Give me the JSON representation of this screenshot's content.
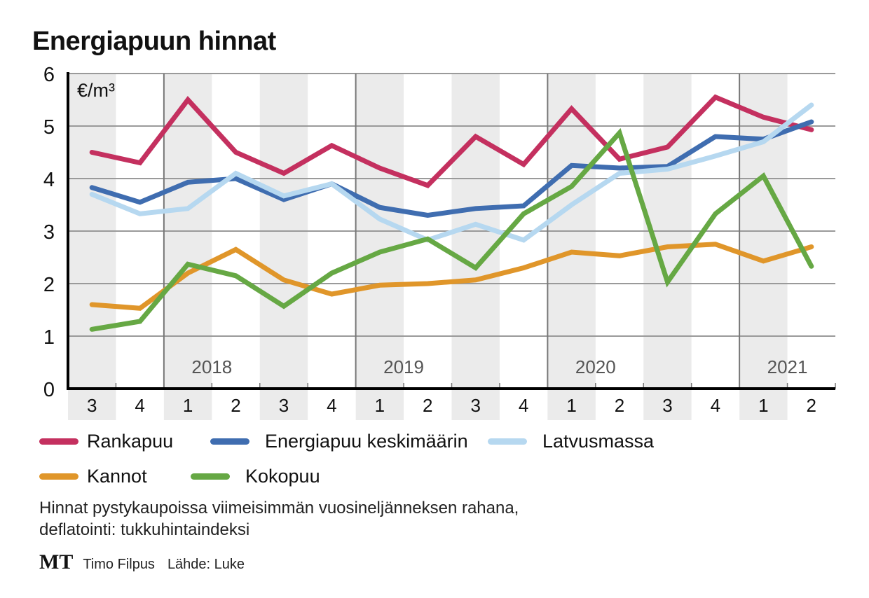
{
  "header": {
    "title": "Energiapuun hinnat"
  },
  "chart_data": {
    "type": "line",
    "title": "Energiapuun hinnat",
    "unit_label": "€/m³",
    "xlabel": "",
    "ylabel": "€/m³",
    "ylim": [
      0,
      6
    ],
    "yticks": [
      "0",
      "1",
      "2",
      "3",
      "4",
      "5",
      "6"
    ],
    "grid": true,
    "x": [
      "3",
      "4",
      "1",
      "2",
      "3",
      "4",
      "1",
      "2",
      "3",
      "4",
      "1",
      "2",
      "3",
      "4",
      "1",
      "2"
    ],
    "year_labels": [
      {
        "label": "2018",
        "start_index": 2
      },
      {
        "label": "2019",
        "start_index": 6
      },
      {
        "label": "2020",
        "start_index": 10
      },
      {
        "label": "2021",
        "start_index": 14
      }
    ],
    "series": [
      {
        "name": "Rankapuu",
        "color": "#c4305f",
        "values": [
          4.5,
          4.3,
          5.5,
          4.5,
          4.1,
          4.63,
          4.2,
          3.87,
          4.8,
          4.27,
          5.33,
          4.37,
          4.6,
          5.55,
          5.17,
          4.93
        ]
      },
      {
        "name": "Energiapuu keskimäärin",
        "color": "#3f6db0",
        "values": [
          3.83,
          3.55,
          3.93,
          4.0,
          3.6,
          3.9,
          3.45,
          3.3,
          3.43,
          3.48,
          4.25,
          4.2,
          4.23,
          4.8,
          4.75,
          5.08
        ]
      },
      {
        "name": "Latvusmassa",
        "color": "#b6d8f0",
        "values": [
          3.7,
          3.33,
          3.43,
          4.1,
          3.67,
          3.9,
          3.23,
          2.83,
          3.13,
          2.83,
          3.5,
          4.1,
          4.18,
          4.43,
          4.7,
          5.4
        ]
      },
      {
        "name": "Kannot",
        "color": "#e0962a",
        "values": [
          1.6,
          1.53,
          2.2,
          2.65,
          2.07,
          1.8,
          1.97,
          2.0,
          2.07,
          2.3,
          2.6,
          2.53,
          2.7,
          2.75,
          2.43,
          2.7
        ]
      },
      {
        "name": "Kokopuu",
        "color": "#66a844",
        "values": [
          1.13,
          1.28,
          2.37,
          2.15,
          1.57,
          2.2,
          2.6,
          2.85,
          2.3,
          3.33,
          3.85,
          4.87,
          2.03,
          3.33,
          4.05,
          2.33
        ]
      }
    ],
    "legend_position": "bottom"
  },
  "legend": {
    "items": [
      {
        "label": "Rankapuu",
        "color": "#c4305f"
      },
      {
        "label": "Energiapuu keskimäärin",
        "color": "#3f6db0"
      },
      {
        "label": "Latvusmassa",
        "color": "#b6d8f0"
      },
      {
        "label": "Kannot",
        "color": "#e0962a"
      },
      {
        "label": "Kokopuu",
        "color": "#66a844"
      }
    ]
  },
  "footer": {
    "note_line1": "Hinnat pystykaupoissa viimeisimmän vuosineljänneksen rahana,",
    "note_line2": "deflatointi: tukkuhintaindeksi",
    "logo": "MT",
    "author": "Timo Filpus",
    "source": "Lähde: Luke"
  }
}
